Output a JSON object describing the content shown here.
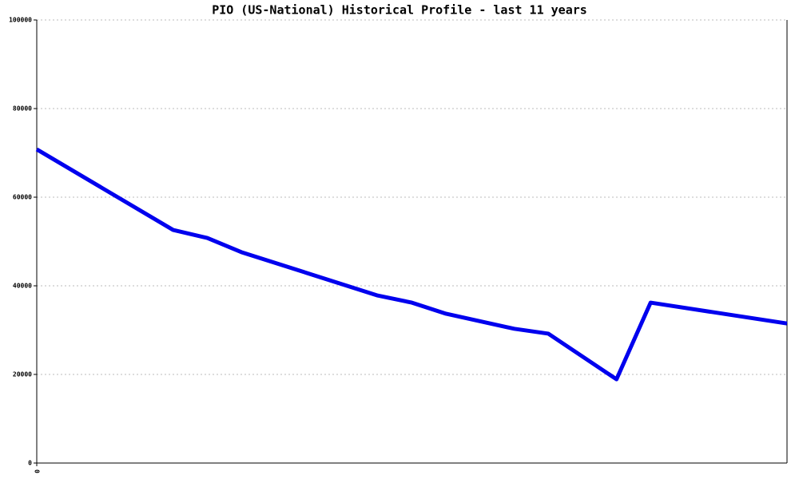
{
  "chart_data": {
    "type": "line",
    "title": "PIO (US-National) Historical Profile - last 11 years",
    "x": [
      0,
      8,
      10,
      12,
      20,
      22,
      24,
      28,
      30,
      34,
      36,
      44
    ],
    "series": [
      {
        "color": "#0000ee",
        "values": [
          70800,
          52600,
          50800,
          47600,
          37800,
          36200,
          33700,
          30300,
          29200,
          18900,
          36200,
          31500
        ]
      }
    ],
    "xlim": [
      0,
      44
    ],
    "xticks": [
      0
    ],
    "ylim": [
      0,
      100000
    ],
    "yticks": [
      0,
      20000,
      40000,
      60000,
      80000,
      100000
    ],
    "grid": true
  }
}
